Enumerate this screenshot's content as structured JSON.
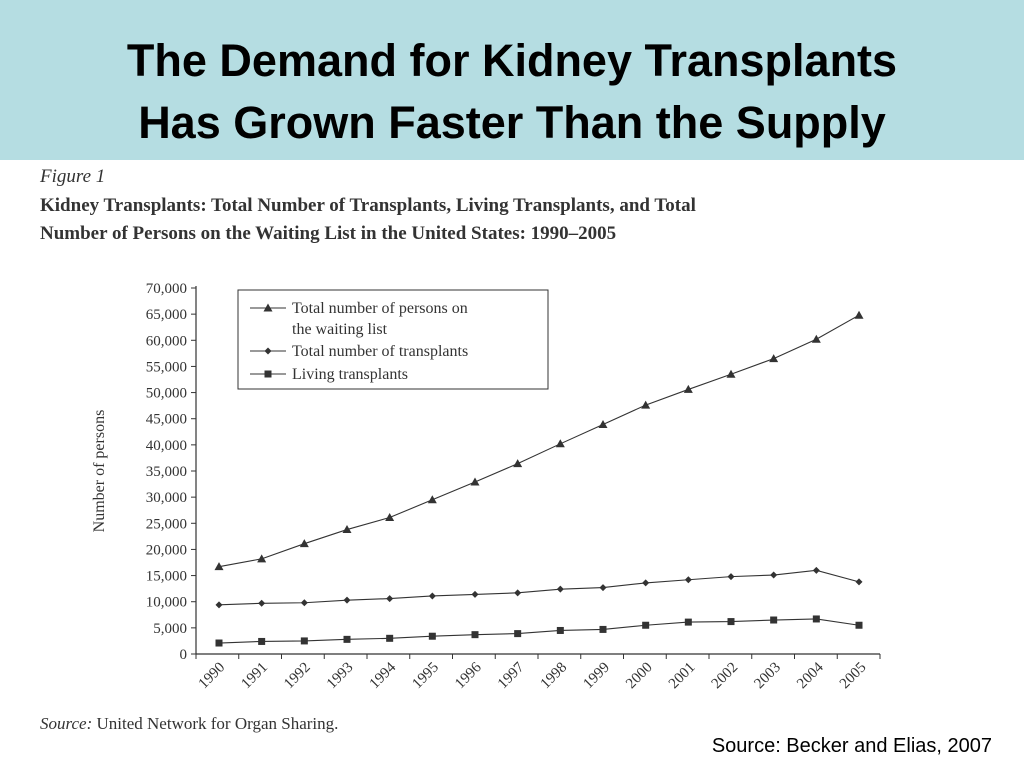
{
  "slide": {
    "title_line1": "The Demand for Kidney Transplants",
    "title_line2": "Has Grown Faster Than the Supply",
    "source": "Source: Becker and Elias, 2007"
  },
  "figure": {
    "label": "Figure 1",
    "caption_line1": "Kidney Transplants: Total Number of Transplants, Living Transplants, and Total",
    "caption_line2": "Number of Persons on the Waiting List in the United States: 1990–2005",
    "source_label": "Source:",
    "source_text": "United Network for Organ Sharing."
  },
  "colors": {
    "header_bg": "#b5dde2",
    "ink": "#333333"
  },
  "chart_data": {
    "type": "line",
    "x": [
      "1990",
      "1991",
      "1992",
      "1993",
      "1994",
      "1995",
      "1996",
      "1997",
      "1998",
      "1999",
      "2000",
      "2001",
      "2002",
      "2003",
      "2004",
      "2005"
    ],
    "ylabel": "Number of persons",
    "ylim": [
      0,
      70000
    ],
    "yticks": [
      0,
      5000,
      10000,
      15000,
      20000,
      25000,
      30000,
      35000,
      40000,
      45000,
      50000,
      55000,
      60000,
      65000,
      70000
    ],
    "ytick_labels": [
      "0",
      "5,000",
      "10,000",
      "15,000",
      "20,000",
      "25,000",
      "30,000",
      "35,000",
      "40,000",
      "45,000",
      "50,000",
      "55,000",
      "60,000",
      "65,000",
      "70,000"
    ],
    "legend_position": "top-left",
    "grid": false,
    "series": [
      {
        "name_line1": "Total number of persons on",
        "name_line2": "the waiting list",
        "marker": "triangle",
        "values": [
          16700,
          18200,
          21100,
          23800,
          26100,
          29500,
          32900,
          36400,
          40200,
          43900,
          47600,
          50600,
          53500,
          56500,
          60200,
          64800
        ]
      },
      {
        "name_line1": "Total number of transplants",
        "marker": "diamond",
        "values": [
          9400,
          9700,
          9800,
          10300,
          10600,
          11100,
          11400,
          11700,
          12400,
          12700,
          13600,
          14200,
          14800,
          15100,
          16000,
          13800
        ]
      },
      {
        "name_line1": "Living transplants",
        "marker": "square",
        "values": [
          2100,
          2400,
          2500,
          2800,
          3000,
          3400,
          3700,
          3900,
          4500,
          4700,
          5500,
          6100,
          6200,
          6500,
          6700,
          5500
        ]
      }
    ]
  }
}
